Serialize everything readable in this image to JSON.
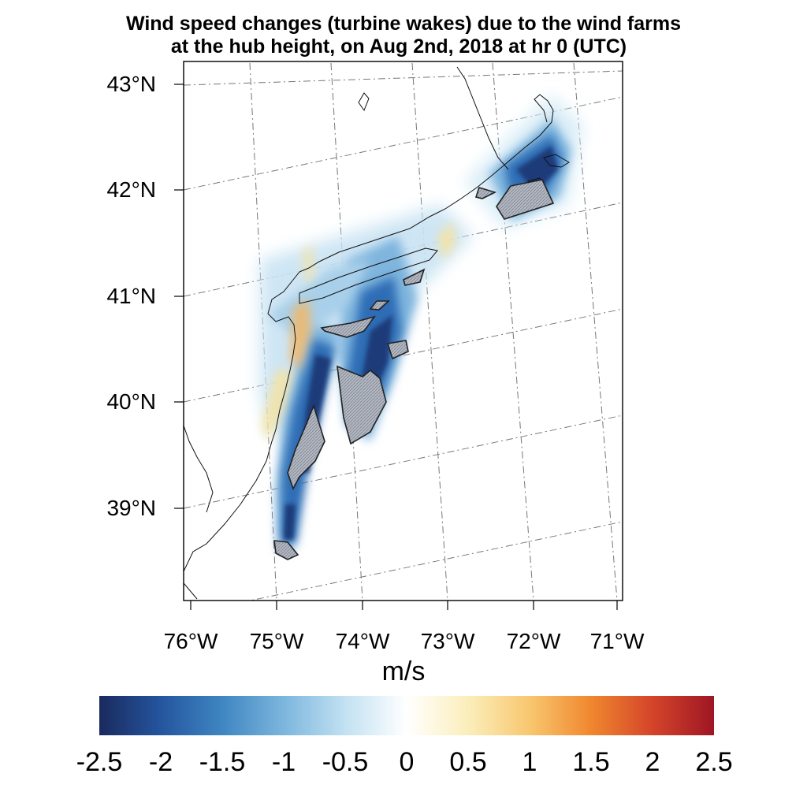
{
  "title": {
    "line1": "Wind speed changes (turbine wakes) due to the wind farms",
    "line2": "at the hub height, on Aug 2nd, 2018 at hr 0 (UTC)"
  },
  "map": {
    "lat_labels": [
      "43°N",
      "42°N",
      "41°N",
      "40°N",
      "39°N"
    ],
    "lon_labels": [
      "76°W",
      "75°W",
      "74°W",
      "73°W",
      "72°W",
      "71°W"
    ],
    "variable": "wind speed change at hub height",
    "colors": {
      "strong_deficit": "#1c3a78",
      "mid_deficit": "#2f6db5",
      "weak_deficit": "#a9d0ea",
      "weak_increase": "#f7e3a0",
      "mid_increase": "#f3a655",
      "wind_farm_fill": "#a9aeb8",
      "wind_farm_outline": "#222222"
    }
  },
  "colorbar": {
    "units": "m/s",
    "ticks": [
      "-2.5",
      "-2",
      "-1.5",
      "-1",
      "-0.5",
      "0",
      "0.5",
      "1",
      "1.5",
      "2",
      "2.5"
    ],
    "range": [
      -2.5,
      2.5
    ],
    "colors": [
      "#1a2a5e",
      "#24559e",
      "#3f86c2",
      "#7cb6dd",
      "#c2e1f2",
      "#ffffff",
      "#fbeebb",
      "#f8c76f",
      "#f0872f",
      "#d4442a",
      "#9e1624"
    ]
  }
}
